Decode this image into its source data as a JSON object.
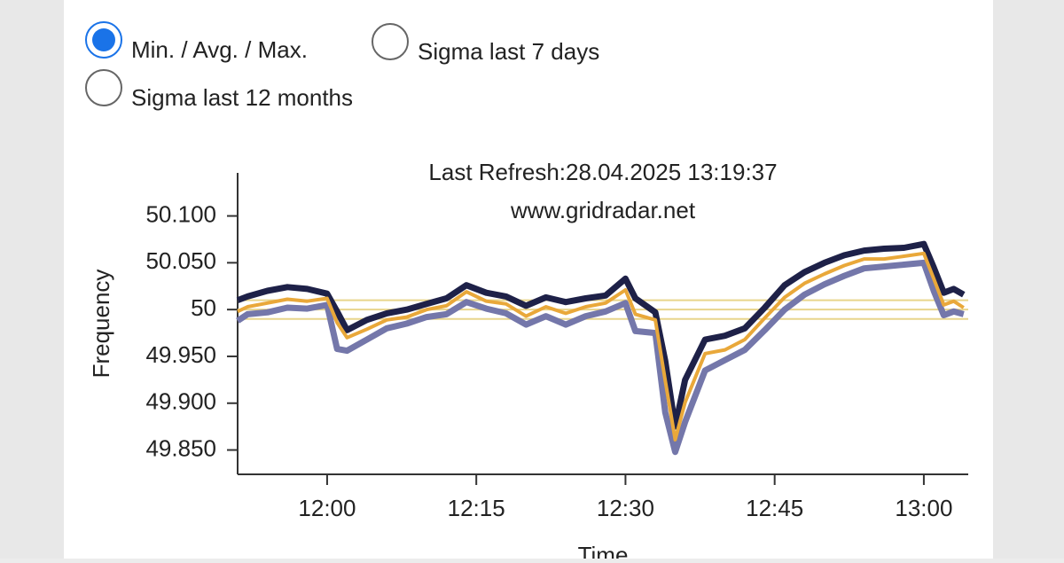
{
  "options": [
    {
      "label": "Min. / Avg. / Max.",
      "selected": true
    },
    {
      "label": "Sigma last 7 days",
      "selected": false
    },
    {
      "label": "Sigma last 12 months",
      "selected": false
    }
  ],
  "chart_data": {
    "type": "line",
    "title": "Last Refresh:28.04.2025 13:19:37",
    "subtitle": "www.gridradar.net",
    "y_label": "Frequency",
    "x_label": "Time",
    "x": [
      "11:51",
      "11:52",
      "11:54",
      "11:56",
      "11:58",
      "12:00",
      "12:01",
      "12:02",
      "12:04",
      "12:06",
      "12:08",
      "12:10",
      "12:12",
      "12:14",
      "12:16",
      "12:18",
      "12:20",
      "12:22",
      "12:24",
      "12:26",
      "12:28",
      "12:30",
      "12:31",
      "12:33",
      "12:34",
      "12:35",
      "12:36",
      "12:38",
      "12:40",
      "12:42",
      "12:44",
      "12:46",
      "12:48",
      "12:50",
      "12:52",
      "12:54",
      "12:56",
      "12:58",
      "13:00",
      "13:01",
      "13:02",
      "13:03",
      "13:04"
    ],
    "series": [
      {
        "name": "Max.",
        "color": "#1e2148",
        "values": [
          50.01,
          50.014,
          50.02,
          50.024,
          50.022,
          50.017,
          49.998,
          49.978,
          49.989,
          49.996,
          50.0,
          50.006,
          50.012,
          50.026,
          50.018,
          50.014,
          50.004,
          50.013,
          50.008,
          50.012,
          50.015,
          50.033,
          50.012,
          49.997,
          49.945,
          49.875,
          49.925,
          49.968,
          49.972,
          49.98,
          50.002,
          50.026,
          50.04,
          50.05,
          50.058,
          50.063,
          50.065,
          50.066,
          50.07,
          50.045,
          50.018,
          50.022,
          50.016
        ]
      },
      {
        "name": "Min.",
        "color": "#7477aa",
        "values": [
          49.988,
          49.995,
          49.997,
          50.002,
          50.001,
          50.005,
          49.958,
          49.956,
          49.968,
          49.98,
          49.985,
          49.992,
          49.995,
          50.008,
          50.001,
          49.996,
          49.984,
          49.993,
          49.984,
          49.993,
          49.998,
          50.007,
          49.977,
          49.975,
          49.89,
          49.848,
          49.88,
          49.935,
          49.946,
          49.957,
          49.978,
          50.0,
          50.016,
          50.027,
          50.036,
          50.044,
          50.046,
          50.048,
          50.05,
          50.02,
          49.994,
          49.998,
          49.995
        ]
      },
      {
        "name": "Avg.",
        "color": "#e9a83a",
        "values": [
          49.998,
          50.003,
          50.007,
          50.011,
          50.009,
          50.012,
          49.986,
          49.97,
          49.979,
          49.989,
          49.992,
          50.0,
          50.004,
          50.019,
          50.009,
          50.006,
          49.993,
          50.003,
          49.996,
          50.003,
          50.007,
          50.021,
          49.995,
          49.989,
          49.924,
          49.861,
          49.901,
          49.953,
          49.957,
          49.968,
          49.991,
          50.013,
          50.028,
          50.038,
          50.047,
          50.054,
          50.054,
          50.057,
          50.06,
          50.033,
          50.005,
          50.009,
          50.002
        ]
      }
    ],
    "reference_lines": {
      "values": [
        50.01,
        50,
        49.99
      ],
      "color": "#e8d58c"
    },
    "xlim": [
      "11:51",
      "13:05"
    ],
    "xticks": [
      "12:00",
      "12:15",
      "12:30",
      "12:45",
      "13:00"
    ],
    "ylim": [
      49.824,
      50.146
    ],
    "yticks": [
      {
        "value": 49.85,
        "label": "49.850"
      },
      {
        "value": 49.9,
        "label": "49.900"
      },
      {
        "value": 49.95,
        "label": "49.950"
      },
      50,
      {
        "value": 50.05,
        "label": "50.050"
      },
      {
        "value": 50.1,
        "label": "50.100"
      }
    ]
  }
}
